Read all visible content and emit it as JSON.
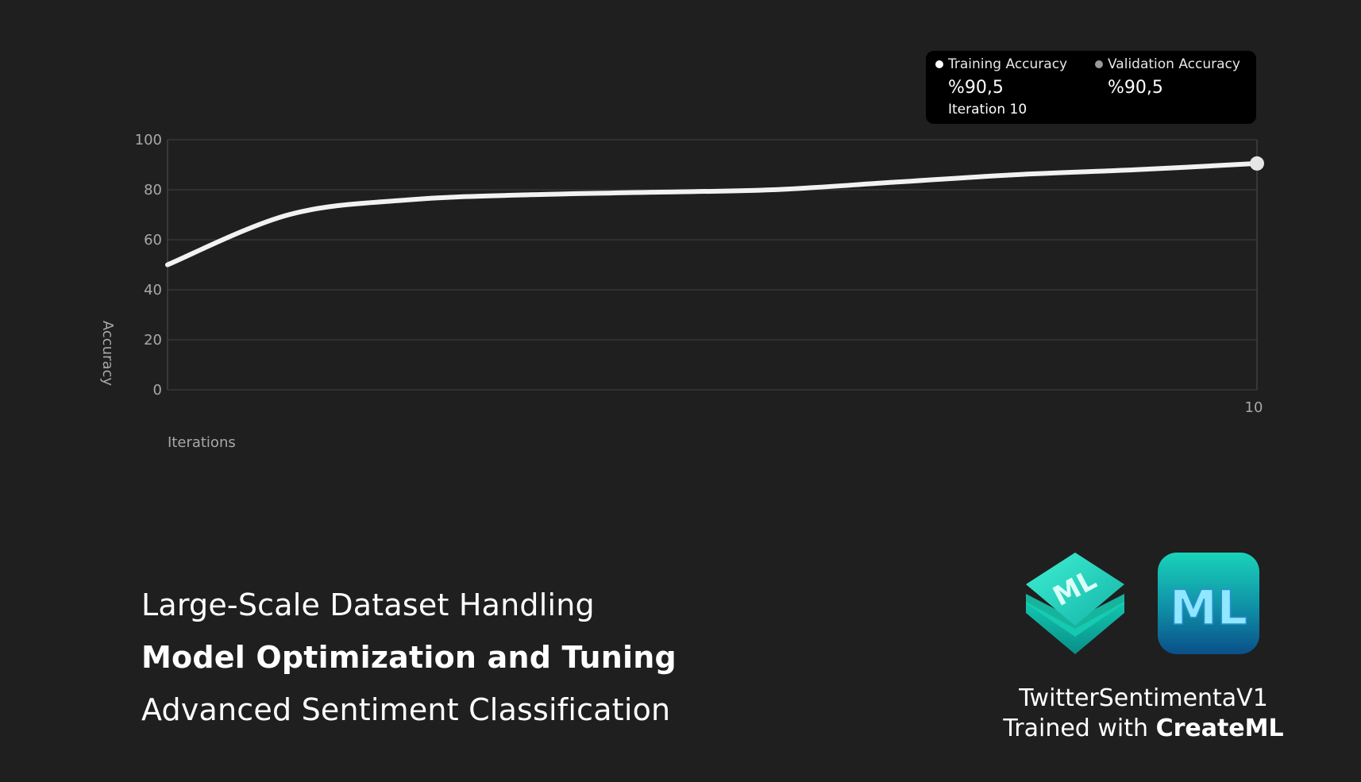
{
  "chart_data": {
    "type": "line",
    "ylabel": "Accuracy",
    "xlabel": "Iterations",
    "ylim": [
      0,
      100
    ],
    "y_ticks": [
      "0",
      "20",
      "40",
      "60",
      "80",
      "100"
    ],
    "x_tick_labels": [
      "10"
    ],
    "grid": true,
    "x": [
      1,
      2,
      3,
      4,
      5,
      6,
      7,
      8,
      9,
      10
    ],
    "series": [
      {
        "name": "Training Accuracy",
        "values": [
          50,
          70,
          76,
          78,
          79,
          80,
          83,
          86,
          88,
          90.5
        ],
        "color": "#f2f2f2"
      }
    ],
    "tooltip": {
      "items": [
        {
          "label": "Training Accuracy",
          "value": "%90,5",
          "dot_color": "#ffffff"
        },
        {
          "label": "Validation Accuracy",
          "value": "%90,5",
          "dot_color": "#9a9a9a"
        }
      ],
      "iteration": "Iteration 10"
    }
  },
  "features": [
    "Large-Scale Dataset Handling",
    "Model Optimization and Tuning",
    "Advanced Sentiment Classification"
  ],
  "model": {
    "name": "TwitterSentimentaV1",
    "trained_prefix": "Trained with ",
    "trained_tool": "CreateML"
  },
  "icons": [
    "createml-cube-icon",
    "createml-app-icon"
  ],
  "colors": {
    "background": "#1f1f1f",
    "gridline": "#3a3a3a",
    "line": "#f2f2f2",
    "axis_text": "#a8a8a8",
    "accent_teal": "#1fd6b8",
    "accent_blue": "#0a4f8a"
  }
}
